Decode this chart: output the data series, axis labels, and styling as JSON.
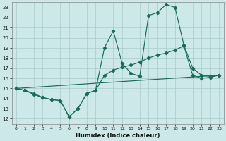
{
  "xlabel": "Humidex (Indice chaleur)",
  "bg_color": "#cde8e8",
  "grid_color": "#aacccc",
  "line_color": "#1a6b5a",
  "xlim": [
    -0.5,
    23.5
  ],
  "ylim": [
    11.5,
    23.5
  ],
  "yticks": [
    12,
    13,
    14,
    15,
    16,
    17,
    18,
    19,
    20,
    21,
    22,
    23
  ],
  "xticks": [
    0,
    1,
    2,
    3,
    4,
    5,
    6,
    7,
    8,
    9,
    10,
    11,
    12,
    13,
    14,
    15,
    16,
    17,
    18,
    19,
    20,
    21,
    22,
    23
  ],
  "line1_x": [
    0,
    1,
    2,
    3,
    4,
    5,
    6,
    7,
    8,
    9,
    10,
    11,
    12,
    13,
    14,
    15,
    16,
    17,
    18,
    19,
    20,
    21,
    22,
    23
  ],
  "line1_y": [
    15.0,
    14.8,
    14.4,
    14.1,
    13.9,
    13.8,
    12.2,
    13.0,
    14.5,
    14.8,
    19.0,
    20.7,
    17.5,
    16.5,
    16.2,
    22.2,
    22.5,
    23.3,
    23.0,
    19.3,
    17.0,
    16.3,
    16.2,
    16.3
  ],
  "line2_x": [
    0,
    1,
    2,
    3,
    4,
    5,
    6,
    7,
    8,
    9,
    10,
    11,
    12,
    13,
    14,
    15,
    16,
    17,
    18,
    19,
    20,
    21,
    22,
    23
  ],
  "line2_y": [
    15.0,
    14.8,
    14.5,
    14.1,
    13.9,
    13.8,
    12.2,
    13.0,
    14.5,
    14.8,
    16.3,
    16.8,
    17.1,
    17.3,
    17.6,
    18.0,
    18.3,
    18.5,
    18.8,
    19.2,
    16.3,
    16.0,
    16.1,
    16.3
  ],
  "line3_x": [
    0,
    23
  ],
  "line3_y": [
    15.0,
    16.3
  ],
  "marker_style": "D",
  "marker_size": 2.2,
  "line_width": 0.85
}
